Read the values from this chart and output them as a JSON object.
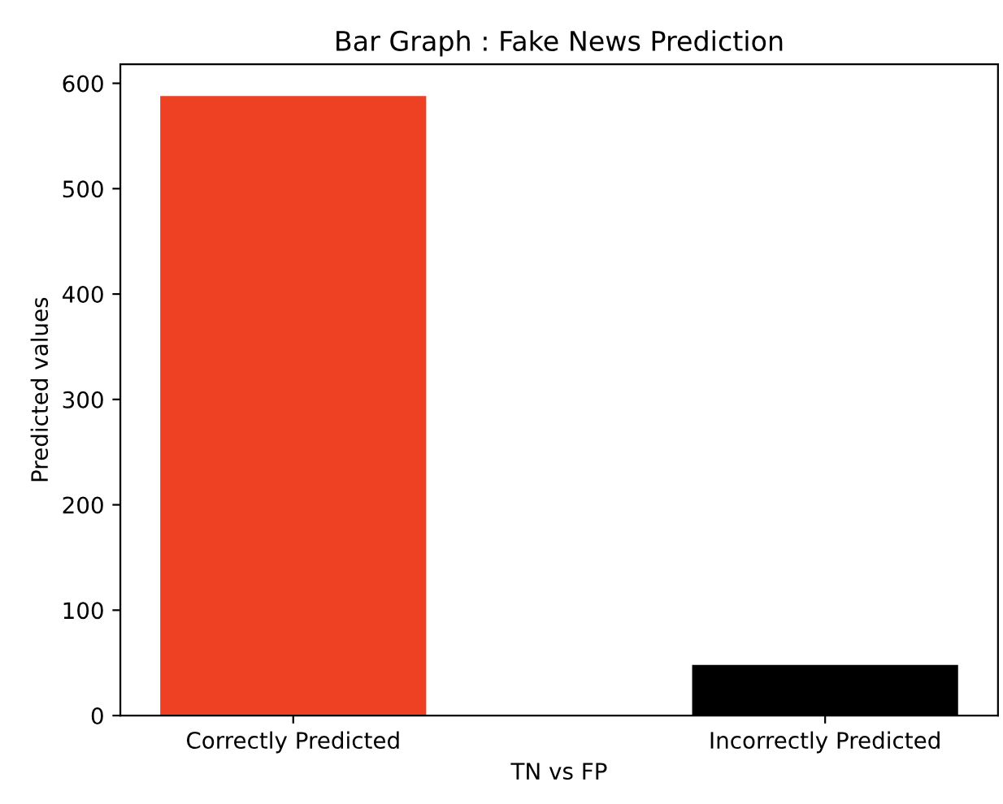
{
  "chart_data": {
    "type": "bar",
    "title": "Bar Graph : Fake News Prediction",
    "xlabel": "TN vs FP",
    "ylabel": "Predicted values",
    "categories": [
      "Correctly Predicted",
      "Incorrectly Predicted"
    ],
    "values": [
      588,
      48
    ],
    "colors": [
      "#ee4123",
      "#000000"
    ],
    "ylim": [
      0,
      618
    ],
    "yticks": [
      0,
      100,
      200,
      300,
      400,
      500,
      600
    ],
    "grid": false
  }
}
